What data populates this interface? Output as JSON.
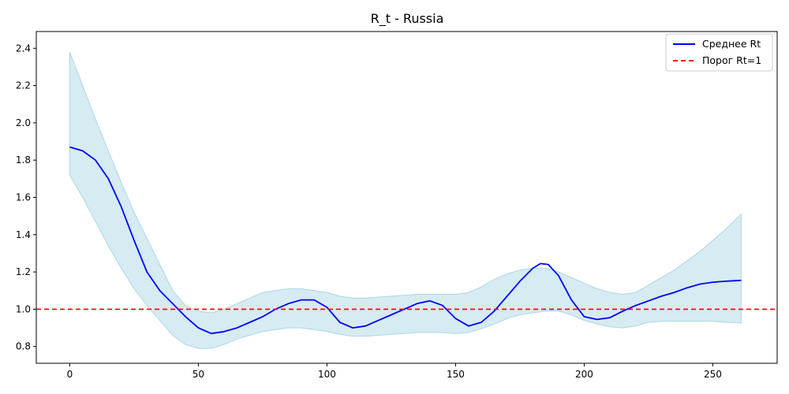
{
  "chart_data": {
    "type": "line",
    "title": "R_t - Russia",
    "xlabel": "",
    "ylabel": "",
    "xlim": [
      -13,
      275
    ],
    "ylim": [
      0.71,
      2.49
    ],
    "xticks": [
      0,
      50,
      100,
      150,
      200,
      250
    ],
    "yticks": [
      0.8,
      1.0,
      1.2,
      1.4,
      1.6,
      1.8,
      2.0,
      2.2,
      2.4
    ],
    "ytick_labels": [
      "0.8",
      "1.0",
      "1.2",
      "1.4",
      "1.6",
      "1.8",
      "2.0",
      "2.2",
      "2.4"
    ],
    "grid": false,
    "legend_position": "top-right",
    "series": [
      {
        "name": "Среднее Rt",
        "kind": "line",
        "color": "#0000ff",
        "x": [
          0,
          5,
          10,
          15,
          20,
          25,
          30,
          35,
          40,
          45,
          50,
          55,
          60,
          65,
          70,
          75,
          80,
          85,
          90,
          95,
          100,
          105,
          110,
          115,
          120,
          125,
          130,
          135,
          140,
          145,
          150,
          155,
          160,
          165,
          170,
          175,
          180,
          183,
          186,
          190,
          195,
          200,
          205,
          210,
          215,
          220,
          225,
          230,
          235,
          240,
          245,
          250,
          255,
          261
        ],
        "y": [
          1.87,
          1.85,
          1.8,
          1.7,
          1.55,
          1.37,
          1.2,
          1.1,
          1.03,
          0.96,
          0.9,
          0.87,
          0.88,
          0.9,
          0.93,
          0.96,
          1.0,
          1.03,
          1.05,
          1.05,
          1.01,
          0.93,
          0.9,
          0.91,
          0.94,
          0.97,
          1.0,
          1.03,
          1.045,
          1.02,
          0.95,
          0.91,
          0.93,
          0.99,
          1.07,
          1.15,
          1.22,
          1.245,
          1.24,
          1.18,
          1.05,
          0.96,
          0.945,
          0.955,
          0.99,
          1.02,
          1.045,
          1.07,
          1.09,
          1.115,
          1.135,
          1.145,
          1.15,
          1.155
        ]
      },
      {
        "name": "",
        "kind": "band",
        "color": "#add8e6",
        "x": [
          0,
          5,
          10,
          15,
          20,
          25,
          30,
          35,
          40,
          45,
          50,
          55,
          60,
          65,
          70,
          75,
          80,
          85,
          90,
          95,
          100,
          105,
          110,
          115,
          120,
          125,
          130,
          135,
          140,
          145,
          150,
          155,
          160,
          165,
          170,
          175,
          180,
          185,
          190,
          195,
          200,
          205,
          210,
          215,
          220,
          225,
          230,
          235,
          240,
          245,
          250,
          255,
          261
        ],
        "upper": [
          2.38,
          2.2,
          2.02,
          1.85,
          1.68,
          1.52,
          1.38,
          1.24,
          1.1,
          1.02,
          0.99,
          0.98,
          1.0,
          1.03,
          1.06,
          1.09,
          1.1,
          1.11,
          1.11,
          1.1,
          1.09,
          1.07,
          1.06,
          1.06,
          1.065,
          1.07,
          1.075,
          1.08,
          1.08,
          1.08,
          1.08,
          1.09,
          1.12,
          1.16,
          1.19,
          1.21,
          1.22,
          1.22,
          1.2,
          1.17,
          1.14,
          1.11,
          1.09,
          1.08,
          1.09,
          1.13,
          1.17,
          1.21,
          1.26,
          1.31,
          1.37,
          1.43,
          1.51
        ],
        "lower": [
          1.72,
          1.6,
          1.47,
          1.34,
          1.22,
          1.11,
          1.02,
          0.94,
          0.86,
          0.81,
          0.79,
          0.79,
          0.81,
          0.84,
          0.86,
          0.88,
          0.89,
          0.9,
          0.9,
          0.89,
          0.88,
          0.865,
          0.855,
          0.855,
          0.86,
          0.865,
          0.87,
          0.875,
          0.875,
          0.875,
          0.87,
          0.875,
          0.895,
          0.92,
          0.95,
          0.97,
          0.98,
          0.99,
          0.99,
          0.97,
          0.94,
          0.92,
          0.905,
          0.9,
          0.91,
          0.93,
          0.935,
          0.935,
          0.935,
          0.935,
          0.935,
          0.93,
          0.925
        ]
      },
      {
        "name": "Порог Rt=1",
        "kind": "hline",
        "color": "#ff0000",
        "dash": true,
        "y": 1.0
      }
    ]
  }
}
